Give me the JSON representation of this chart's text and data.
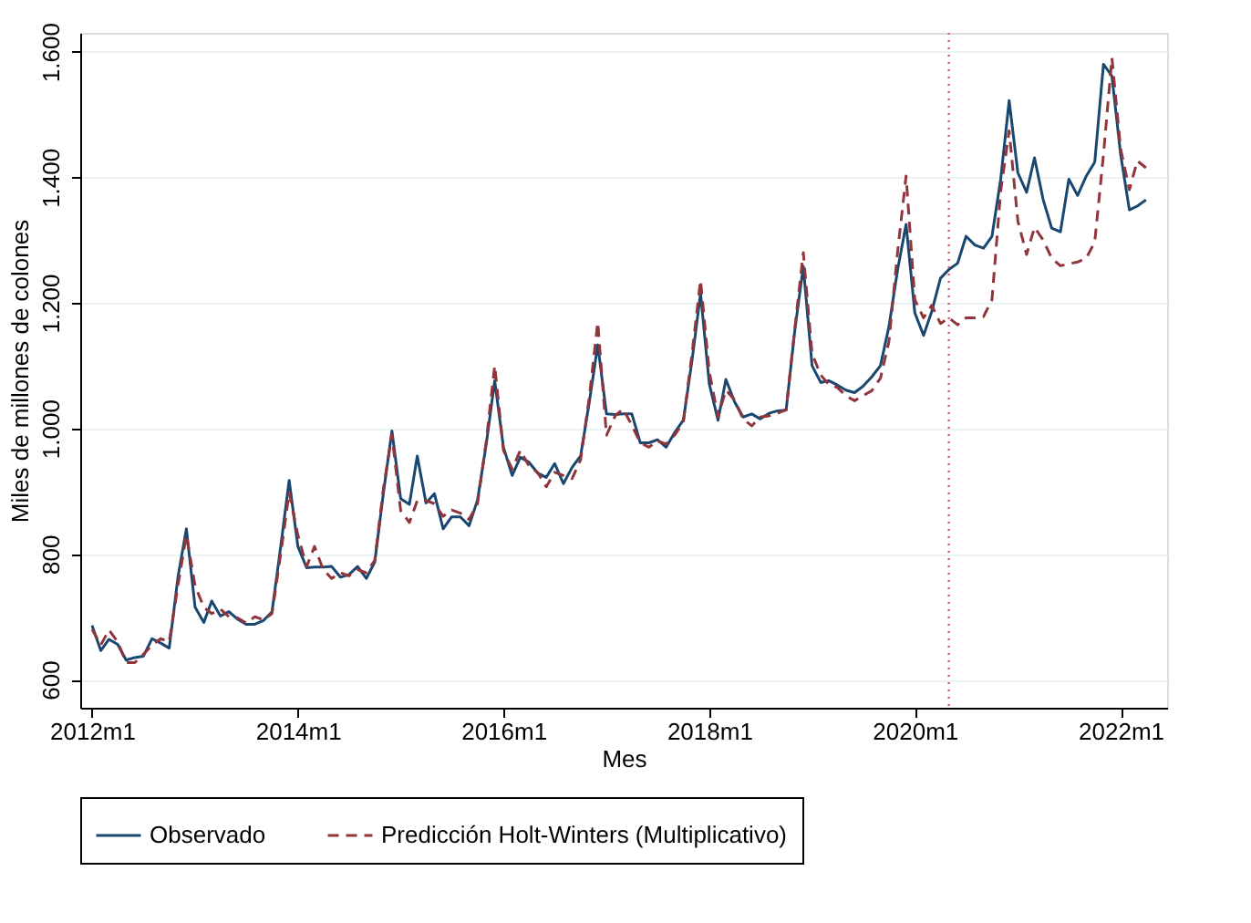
{
  "chart_data": {
    "type": "line",
    "xlabel": "Mes",
    "ylabel": "Miles de millones de colones",
    "x": [
      "2012-01",
      "2012-02",
      "2012-03",
      "2012-04",
      "2012-05",
      "2012-06",
      "2012-07",
      "2012-08",
      "2012-09",
      "2012-10",
      "2012-11",
      "2012-12",
      "2013-01",
      "2013-02",
      "2013-03",
      "2013-04",
      "2013-05",
      "2013-06",
      "2013-07",
      "2013-08",
      "2013-09",
      "2013-10",
      "2013-11",
      "2013-12",
      "2014-01",
      "2014-02",
      "2014-03",
      "2014-04",
      "2014-05",
      "2014-06",
      "2014-07",
      "2014-08",
      "2014-09",
      "2014-10",
      "2014-11",
      "2014-12",
      "2015-01",
      "2015-02",
      "2015-03",
      "2015-04",
      "2015-05",
      "2015-06",
      "2015-07",
      "2015-08",
      "2015-09",
      "2015-10",
      "2015-11",
      "2015-12",
      "2016-01",
      "2016-02",
      "2016-03",
      "2016-04",
      "2016-05",
      "2016-06",
      "2016-07",
      "2016-08",
      "2016-09",
      "2016-10",
      "2016-11",
      "2016-12",
      "2017-01",
      "2017-02",
      "2017-03",
      "2017-04",
      "2017-05",
      "2017-06",
      "2017-07",
      "2017-08",
      "2017-09",
      "2017-10",
      "2017-11",
      "2017-12",
      "2018-01",
      "2018-02",
      "2018-03",
      "2018-04",
      "2018-05",
      "2018-06",
      "2018-07",
      "2018-08",
      "2018-09",
      "2018-10",
      "2018-11",
      "2018-12",
      "2019-01",
      "2019-02",
      "2019-03",
      "2019-04",
      "2019-05",
      "2019-06",
      "2019-07",
      "2019-08",
      "2019-09",
      "2019-10",
      "2019-11",
      "2019-12",
      "2020-01",
      "2020-02",
      "2020-03",
      "2020-04",
      "2020-05",
      "2020-06",
      "2020-07",
      "2020-08",
      "2020-09",
      "2020-10",
      "2020-11",
      "2020-12",
      "2021-01",
      "2021-02",
      "2021-03",
      "2021-04",
      "2021-05",
      "2021-06",
      "2021-07",
      "2021-08",
      "2021-09",
      "2021-10",
      "2021-11",
      "2021-12",
      "2022-01",
      "2022-02",
      "2022-03",
      "2022-04"
    ],
    "series": [
      {
        "name": "Observado",
        "color": "#1a476f",
        "line_style": "solid",
        "values": [
          686,
          646,
          664,
          656,
          631,
          635,
          637,
          665,
          658,
          650,
          763,
          840,
          715,
          691,
          725,
          701,
          708,
          696,
          688,
          688,
          694,
          708,
          812,
          917,
          812,
          778,
          779,
          779,
          780,
          763,
          767,
          780,
          761,
          787,
          898,
          996,
          888,
          879,
          956,
          881,
          896,
          840,
          859,
          859,
          845,
          886,
          975,
          1076,
          970,
          925,
          954,
          946,
          929,
          922,
          944,
          912,
          938,
          956,
          1042,
          1133,
          1023,
          1022,
          1023,
          1023,
          977,
          977,
          982,
          970,
          994,
          1013,
          1109,
          1215,
          1071,
          1013,
          1078,
          1042,
          1018,
          1023,
          1015,
          1024,
          1028,
          1029,
          1157,
          1258,
          1100,
          1073,
          1076,
          1069,
          1061,
          1057,
          1067,
          1082,
          1100,
          1162,
          1253,
          1325,
          1184,
          1148,
          1186,
          1239,
          1253,
          1263,
          1306,
          1292,
          1287,
          1306,
          1397,
          1522,
          1407,
          1376,
          1431,
          1364,
          1319,
          1313,
          1397,
          1371,
          1402,
          1424,
          1580,
          1561,
          1436,
          1348,
          1354,
          1364
        ]
      },
      {
        "name": "Predicción Holt-Winters (Multiplicativo)",
        "color": "#90353b",
        "line_style": "dashed",
        "values": [
          680,
          655,
          679,
          660,
          627,
          627,
          640,
          655,
          665,
          660,
          750,
          830,
          749,
          715,
          705,
          712,
          700,
          698,
          690,
          700,
          695,
          705,
          800,
          898,
          830,
          780,
          812,
          775,
          761,
          770,
          765,
          775,
          770,
          790,
          905,
          990,
          869,
          850,
          885,
          885,
          880,
          860,
          870,
          865,
          855,
          880,
          980,
          1100,
          965,
          935,
          965,
          940,
          930,
          907,
          930,
          925,
          920,
          950,
          1050,
          1169,
          989,
          1020,
          1031,
          1005,
          977,
          970,
          980,
          975,
          990,
          1010,
          1120,
          1236,
          1090,
          1019,
          1061,
          1045,
          1015,
          1004,
          1018,
          1020,
          1024,
          1030,
          1160,
          1280,
          1119,
          1085,
          1070,
          1065,
          1052,
          1044,
          1052,
          1060,
          1080,
          1138,
          1282,
          1402,
          1205,
          1176,
          1196,
          1167,
          1176,
          1165,
          1176,
          1176,
          1178,
          1205,
          1378,
          1474,
          1330,
          1277,
          1320,
          1300,
          1271,
          1259,
          1262,
          1265,
          1271,
          1297,
          1436,
          1590,
          1445,
          1380,
          1426,
          1415
        ]
      }
    ],
    "xlim": [
      "2011-11-20",
      "2022-06-15"
    ],
    "xticks": [
      {
        "value": "2012-01",
        "label": "2012m1"
      },
      {
        "value": "2014-01",
        "label": "2014m1"
      },
      {
        "value": "2016-01",
        "label": "2016m1"
      },
      {
        "value": "2018-01",
        "label": "2018m1"
      },
      {
        "value": "2020-01",
        "label": "2020m1"
      },
      {
        "value": "2022-01",
        "label": "2022m1"
      }
    ],
    "ylim": [
      555,
      1630
    ],
    "yticks": [
      {
        "value": 600,
        "label": "600"
      },
      {
        "value": 800,
        "label": "800"
      },
      {
        "value": 1000,
        "label": "1.000"
      },
      {
        "value": 1200,
        "label": "1.200"
      },
      {
        "value": 1400,
        "label": "1.400"
      },
      {
        "value": 1600,
        "label": "1.600"
      }
    ],
    "ref_lines": [
      {
        "axis": "x",
        "value": "2020-05",
        "color": "#e0507a",
        "line_style": "dotted"
      }
    ],
    "grid": "y",
    "legend": "bottom",
    "marker": "none"
  }
}
